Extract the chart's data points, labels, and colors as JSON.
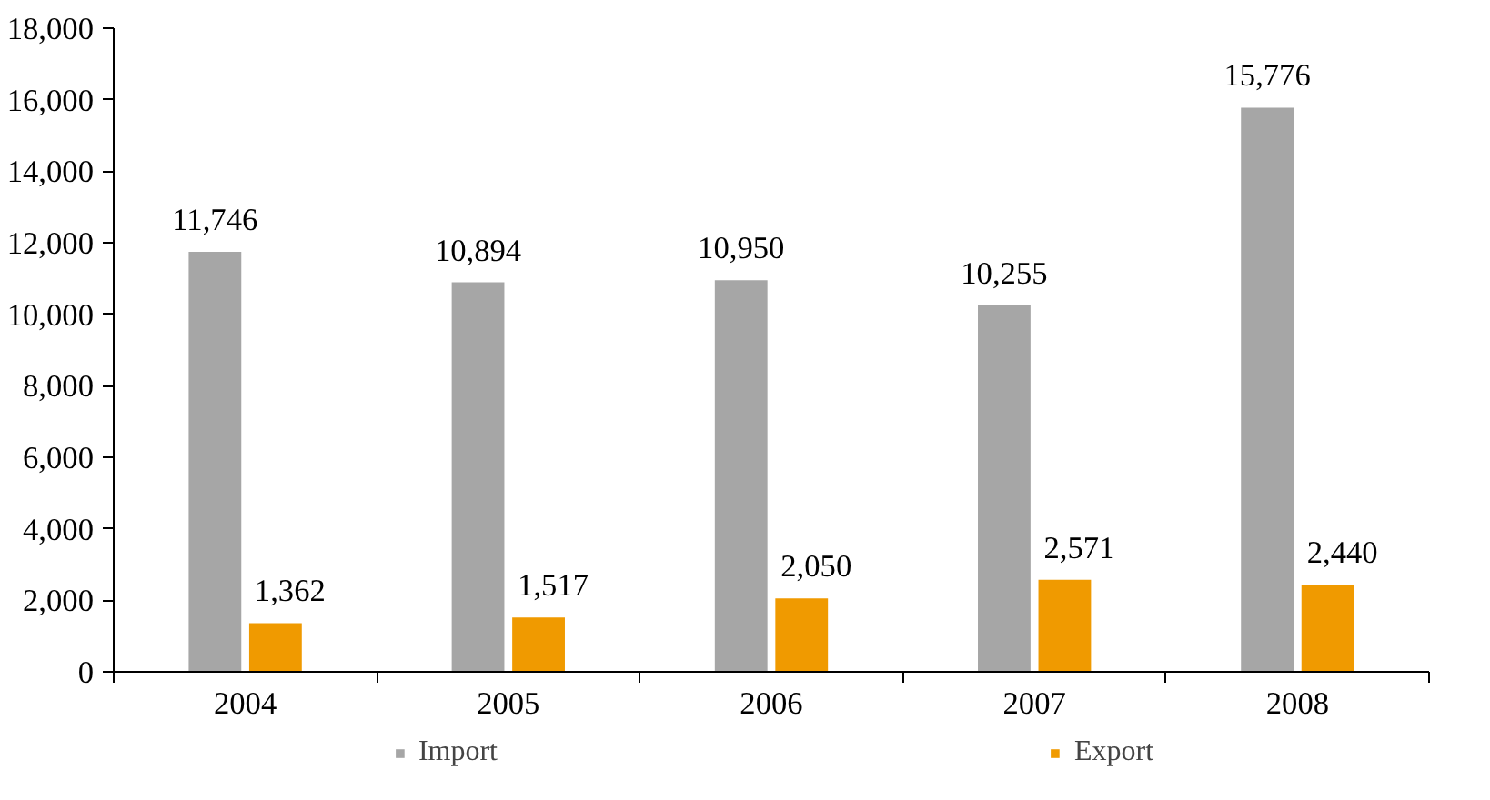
{
  "chart_data": {
    "type": "bar",
    "categories": [
      "2004",
      "2005",
      "2006",
      "2007",
      "2008"
    ],
    "series": [
      {
        "name": "Import",
        "color": "#a6a6a6",
        "values": [
          11746,
          10894,
          10950,
          10255,
          15776
        ],
        "value_labels": [
          "11,746",
          "10,894",
          "10,950",
          "10,255",
          "15,776"
        ]
      },
      {
        "name": "Export",
        "color": "#f09a00",
        "values": [
          1362,
          1517,
          2050,
          2571,
          2440
        ],
        "value_labels": [
          "1,362",
          "1,517",
          "2,050",
          "2,571",
          "2,440"
        ]
      }
    ],
    "ylim": [
      0,
      18000
    ],
    "yticks": [
      0,
      {
        "value": 2000,
        "label": "2,000"
      },
      {
        "value": 4000,
        "label": "4,000"
      },
      {
        "value": 6000,
        "label": "6,000"
      },
      {
        "value": 8000,
        "label": "8,000"
      },
      {
        "value": 10000,
        "label": "10,000"
      },
      {
        "value": 12000,
        "label": "12,000"
      },
      {
        "value": 14000,
        "label": "14,000"
      },
      {
        "value": 16000,
        "label": "16,000"
      },
      {
        "value": 18000,
        "label": "18,000"
      }
    ],
    "grid": false,
    "data_labels": true,
    "legend": "bottom"
  }
}
